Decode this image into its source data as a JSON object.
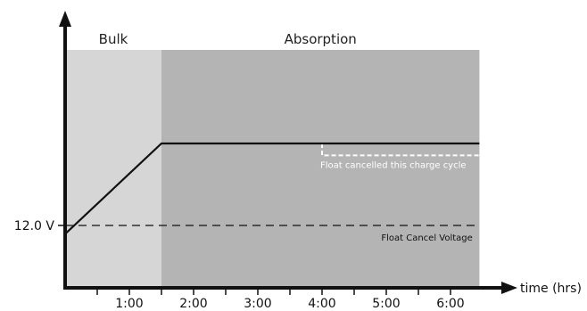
{
  "chart_data": {
    "type": "line",
    "xlabel": "time (hrs)",
    "ylabel": "",
    "x_ticks": [
      {
        "value": 1,
        "label": "1:00"
      },
      {
        "value": 2,
        "label": "2:00"
      },
      {
        "value": 3,
        "label": "3:00"
      },
      {
        "value": 4,
        "label": "4:00"
      },
      {
        "value": 5,
        "label": "5:00"
      },
      {
        "value": 6,
        "label": "6:00"
      }
    ],
    "x_minor_ticks": [
      0.5,
      1.5,
      2.5,
      3.5,
      4.5,
      5.5
    ],
    "xlim": [
      0,
      6.45
    ],
    "y_reference": {
      "value": 12.0,
      "label": "12.0 V"
    },
    "phases": [
      {
        "name": "Bulk",
        "x_start": 0,
        "x_end": 1.5,
        "color": "#d6d6d6"
      },
      {
        "name": "Absorption",
        "x_start": 1.5,
        "x_end": 6.45,
        "color": "#b3b4b3"
      }
    ],
    "series": [
      {
        "name": "",
        "points": [
          [
            0,
            11.75
          ],
          [
            1.5,
            14.4
          ],
          [
            6.45,
            14.4
          ]
        ],
        "color": "#111111"
      }
    ],
    "annotations": [
      {
        "label": "Float cancelled this charge cycle",
        "x": 4.0,
        "y": 14.05
      },
      {
        "label": "Float Cancel Voltage",
        "x": 6.4,
        "y": 11.8
      }
    ],
    "float_cancel_path": [
      [
        4.0,
        14.4
      ],
      [
        4.0,
        14.05
      ],
      [
        6.45,
        14.05
      ]
    ],
    "float_cancel_voltage": 12.0
  }
}
